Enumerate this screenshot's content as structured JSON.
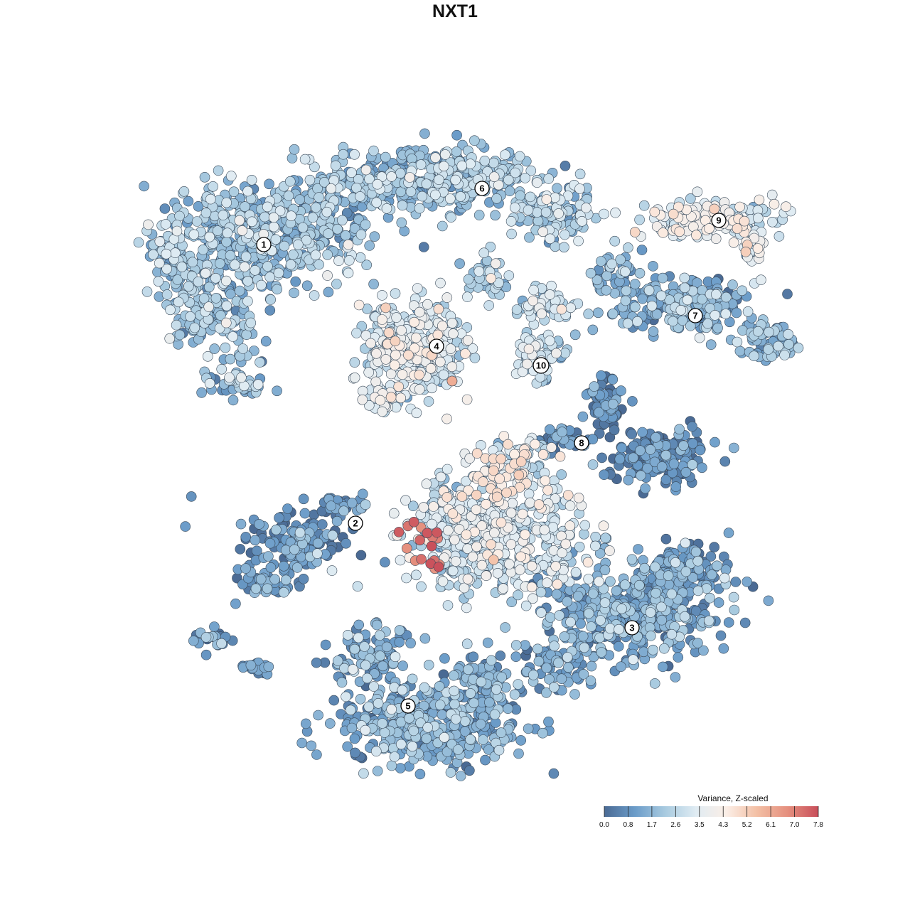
{
  "chart_data": {
    "type": "scatter",
    "title": "NXT1",
    "xlabel": "",
    "ylabel": "",
    "grid": false,
    "legend": {
      "title": "Variance, Z-scaled",
      "placement": "bottom-right",
      "ticks": [
        "0.0",
        "0.8",
        "1.7",
        "2.6",
        "3.5",
        "4.3",
        "5.2",
        "6.1",
        "7.0",
        "7.8"
      ],
      "range": [
        0.0,
        7.8
      ],
      "colors": [
        "#4a6a94",
        "#6b9cc9",
        "#a9cbe0",
        "#e0ecf3",
        "#fbeee6",
        "#f3bfa4",
        "#e58f7e",
        "#c84e5a"
      ]
    },
    "clusters": [
      {
        "label": "1",
        "level": 2.0
      },
      {
        "label": "2",
        "level": 1.0
      },
      {
        "label": "3",
        "level": 1.3
      },
      {
        "label": "4",
        "level": 3.2
      },
      {
        "label": "5",
        "level": 1.5
      },
      {
        "label": "6",
        "level": 2.2
      },
      {
        "label": "7",
        "level": 1.6
      },
      {
        "label": "8",
        "level": 0.5
      },
      {
        "label": "9",
        "level": 3.4
      },
      {
        "label": "10",
        "level": 2.6
      }
    ]
  }
}
